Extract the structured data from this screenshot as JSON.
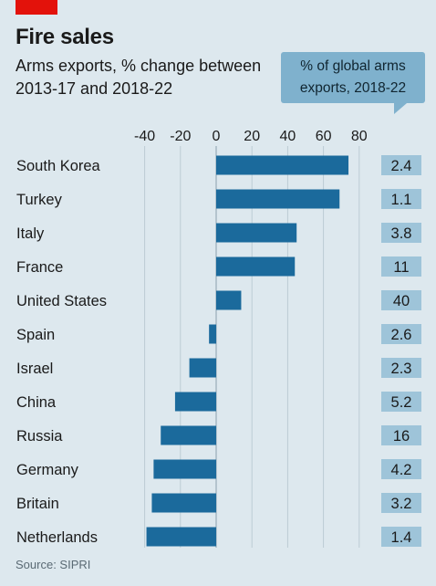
{
  "header": {
    "title": "Fire sales",
    "subtitle": "Arms exports, % change between 2013-17 and 2018-22",
    "side_label": "% of global arms exports, 2018-22"
  },
  "source": "Source: SIPRI",
  "colors": {
    "accent": "#e3120b",
    "background": "#dde8ee",
    "bar": "#1b6a9c",
    "share_box": "#9ec4d9",
    "callout": "#7fb1cd"
  },
  "chart_data": {
    "type": "bar",
    "orientation": "horizontal",
    "categories": [
      "South Korea",
      "Turkey",
      "Italy",
      "France",
      "United States",
      "Spain",
      "Israel",
      "China",
      "Russia",
      "Germany",
      "Britain",
      "Netherlands"
    ],
    "values": [
      74,
      69,
      45,
      44,
      14,
      -4,
      -15,
      -23,
      -31,
      -35,
      -36,
      -39
    ],
    "share_of_global_exports": [
      "2.4",
      "1.1",
      "3.8",
      "11",
      "40",
      "2.6",
      "2.3",
      "5.2",
      "16",
      "4.2",
      "3.2",
      "1.4"
    ],
    "xlim": [
      -40,
      80
    ],
    "xticks": [
      "-40",
      "-20",
      "0",
      "20",
      "40",
      "60",
      "80"
    ],
    "tick_values": [
      -40,
      -20,
      0,
      20,
      40,
      60,
      80
    ],
    "grid": true
  }
}
